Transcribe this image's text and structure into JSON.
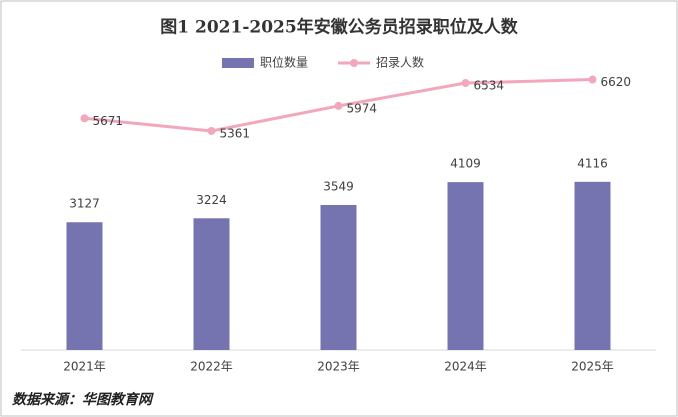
{
  "chart_data": {
    "type": "bar",
    "title": "图1 2021-2025年安徽公务员招录职位及人数",
    "source": "数据来源：华图教育网",
    "categories": [
      "2021年",
      "2022年",
      "2023年",
      "2024年",
      "2025年"
    ],
    "series": [
      {
        "name": "职位数量",
        "type": "bar",
        "color": "#7574b1",
        "values": [
          3127,
          3224,
          3549,
          4109,
          4116
        ]
      },
      {
        "name": "招录人数",
        "type": "line",
        "color": "#f2a7bb",
        "values": [
          5671,
          5361,
          5974,
          6534,
          6620
        ]
      }
    ],
    "ylim": [
      0,
      7000
    ]
  }
}
